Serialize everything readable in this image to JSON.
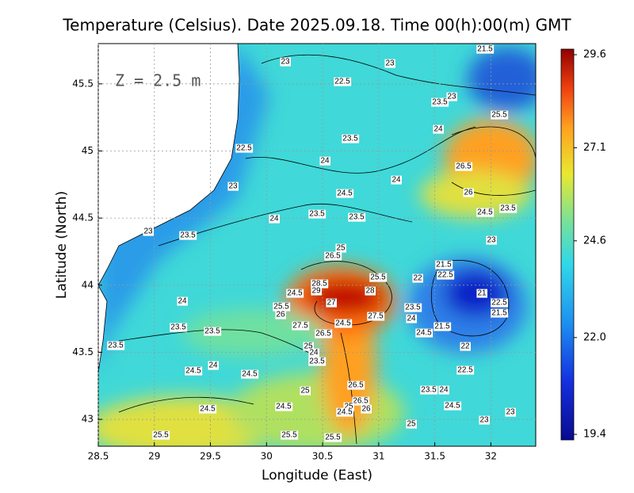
{
  "chart_data": {
    "type": "contour_map",
    "title": "Temperature (Celsius). Date 2025.09.18. Time 00(h):00(m) GMT",
    "annotation": "Z = 2.5 m",
    "xlabel": "Longitude (East)",
    "ylabel": "Latitude (North)",
    "xlim": [
      28.5,
      32.4
    ],
    "ylim": [
      42.8,
      45.8
    ],
    "xticks": [
      28.5,
      29,
      29.5,
      30,
      30.5,
      31,
      31.5,
      32
    ],
    "yticks": [
      43,
      43.5,
      44,
      44.5,
      45,
      45.5
    ],
    "grid": true,
    "clim": [
      19.4,
      29.6
    ],
    "cticks": [
      19.4,
      {
        "value": 22,
        "label": "22.0"
      },
      24.6,
      27.1,
      29.6
    ],
    "contour_labels": [
      23,
      23,
      21.5,
      22.5,
      23.5,
      23,
      25.5,
      23.5,
      24,
      22.5,
      26.5,
      24,
      24,
      23,
      24.5,
      26,
      24.5,
      23.5,
      23.5,
      23.5,
      24,
      23,
      23.5,
      23,
      25,
      26.5,
      21.5,
      22.5,
      22,
      25.5,
      28.5,
      29,
      28,
      24.5,
      21,
      22.5,
      21.5,
      24,
      27,
      25.5,
      23.5,
      26,
      27.5,
      24,
      24.5,
      27.5,
      21.5,
      23.5,
      23.5,
      26.5,
      24.5,
      22,
      23.5,
      25,
      24,
      23.5,
      24,
      24.5,
      24.5,
      22.5,
      26.5,
      23.5,
      24,
      25,
      26.5,
      24.5,
      24.5,
      24.5,
      25,
      26,
      24.5,
      23,
      23,
      25,
      25.5,
      25.5,
      25.5
    ]
  }
}
